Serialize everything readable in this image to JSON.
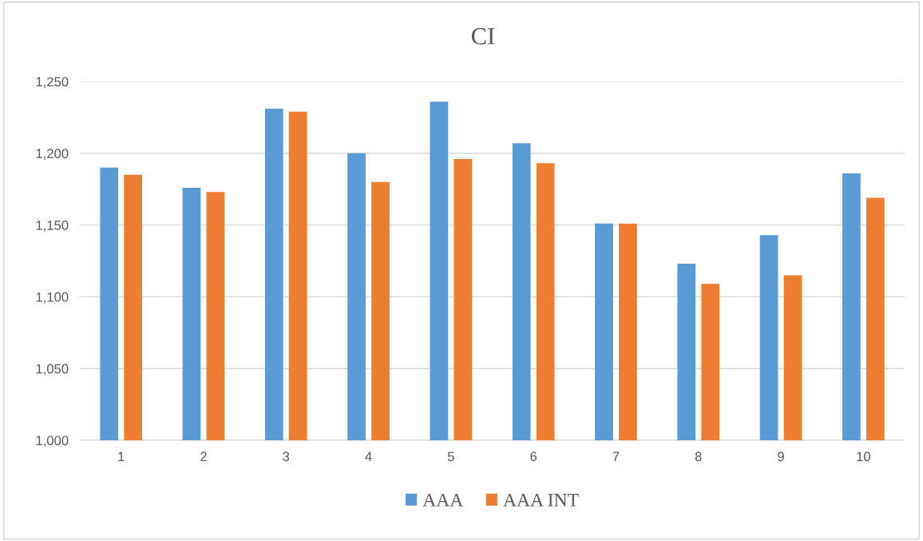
{
  "chart_data": {
    "type": "bar",
    "title": "CI",
    "categories": [
      "1",
      "2",
      "3",
      "4",
      "5",
      "6",
      "7",
      "8",
      "9",
      "10"
    ],
    "series": [
      {
        "name": "AAA",
        "color": "#5b9bd5",
        "values": [
          1190,
          1176,
          1231,
          1200,
          1236,
          1207,
          1151,
          1123,
          1143,
          1186
        ]
      },
      {
        "name": "AAA INT",
        "color": "#ed7d31",
        "values": [
          1185,
          1173,
          1229,
          1180,
          1196,
          1193,
          1151,
          1109,
          1115,
          1169
        ]
      }
    ],
    "ylim": [
      1000,
      1250
    ],
    "yticks": [
      {
        "value": 1000,
        "label": "1,000"
      },
      {
        "value": 1050,
        "label": "1,050"
      },
      {
        "value": 1100,
        "label": "1,100"
      },
      {
        "value": 1150,
        "label": "1,150"
      },
      {
        "value": 1200,
        "label": "1,200"
      },
      {
        "value": 1250,
        "label": "1,250"
      }
    ],
    "grid": "y",
    "legend": "bottom"
  }
}
